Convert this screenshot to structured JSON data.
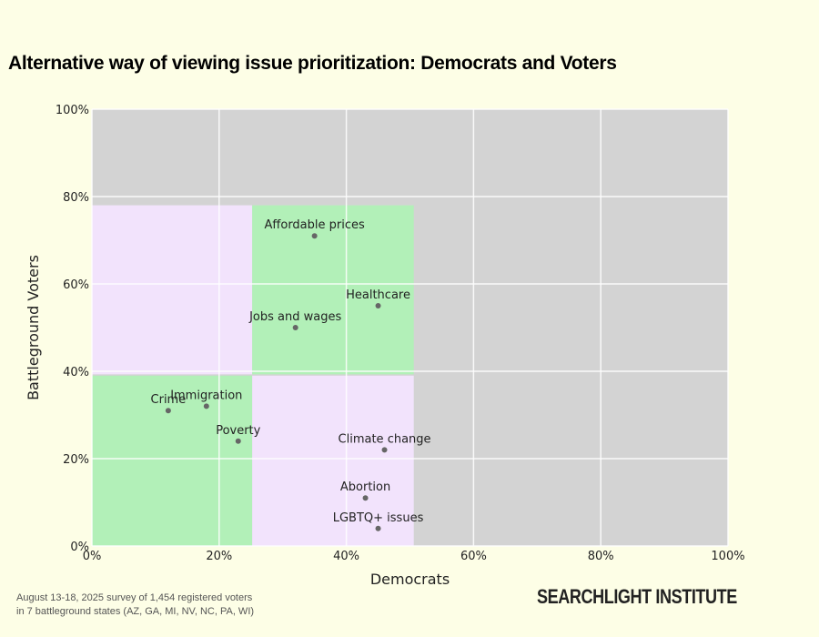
{
  "title": "Alternative way of viewing issue prioritization: Democrats and Voters",
  "note_line1": "August 13-18, 2025 survey of 1,454 registered voters",
  "note_line2": "in 7 battleground states (AZ, GA, MI, NV, NC, PA, WI)",
  "logo": "SEARCHLIGHT INSTITUTE",
  "chart_data": {
    "type": "scatter",
    "title": "Alternative way of viewing issue prioritization: Democrats and Voters",
    "xlabel": "Democrats",
    "ylabel": "Battleground Voters",
    "xlim": [
      0,
      100
    ],
    "ylim": [
      0,
      100
    ],
    "x_ticks": [
      "0%",
      "20%",
      "40%",
      "60%",
      "80%",
      "100%"
    ],
    "y_ticks": [
      "0%",
      "20%",
      "40%",
      "60%",
      "80%",
      "100%"
    ],
    "grid": true,
    "colors": {
      "background": "#d3d3d3",
      "green": "#b2f0b8",
      "pink": "#f2e3fc",
      "point": "#666666"
    },
    "regions": [
      {
        "x": [
          0,
          25.2
        ],
        "y": [
          39.3,
          78
        ],
        "color": "pink"
      },
      {
        "x": [
          25.2,
          50.6
        ],
        "y": [
          39.3,
          78
        ],
        "color": "green"
      },
      {
        "x": [
          0,
          25.2
        ],
        "y": [
          0,
          39
        ],
        "color": "green"
      },
      {
        "x": [
          25.2,
          50.6
        ],
        "y": [
          0,
          39
        ],
        "color": "pink"
      }
    ],
    "points": [
      {
        "label": "Affordable prices",
        "x": 35,
        "y": 71
      },
      {
        "label": "Healthcare",
        "x": 45,
        "y": 55
      },
      {
        "label": "Jobs and wages",
        "x": 32,
        "y": 50
      },
      {
        "label": "Crime",
        "x": 12,
        "y": 31
      },
      {
        "label": "Immigration",
        "x": 18,
        "y": 32
      },
      {
        "label": "Poverty",
        "x": 23,
        "y": 24
      },
      {
        "label": "Climate change",
        "x": 46,
        "y": 22
      },
      {
        "label": "Abortion",
        "x": 43,
        "y": 11
      },
      {
        "label": "LGBTQ+ issues",
        "x": 45,
        "y": 4
      }
    ]
  }
}
